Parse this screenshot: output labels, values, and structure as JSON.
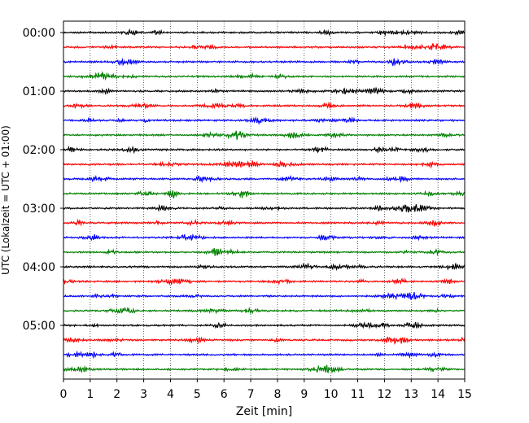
{
  "chart_data": {
    "type": "line",
    "title": "",
    "xlabel": "Zeit  [min]",
    "ylabel": "UTC (Lokalzeit = UTC + 01:00)",
    "xlim": [
      0,
      15
    ],
    "x_ticks": [
      "0",
      "1",
      "2",
      "3",
      "4",
      "5",
      "6",
      "7",
      "8",
      "9",
      "10",
      "11",
      "12",
      "13",
      "14",
      "15"
    ],
    "y_tick_labels": [
      "00:00",
      "01:00",
      "02:00",
      "03:00",
      "04:00",
      "05:00"
    ],
    "trace_interval_min": 15,
    "trace_count": 24,
    "trace_colors": [
      "#000000",
      "#ff0000",
      "#0000ff",
      "#008000"
    ],
    "grid": {
      "x": "dotted vertical at each minute",
      "y": false
    },
    "legend": "none",
    "traces": [
      {
        "start": "00:00",
        "color": "#000000"
      },
      {
        "start": "00:15",
        "color": "#ff0000"
      },
      {
        "start": "00:30",
        "color": "#0000ff"
      },
      {
        "start": "00:45",
        "color": "#008000"
      },
      {
        "start": "01:00",
        "color": "#000000"
      },
      {
        "start": "01:15",
        "color": "#ff0000"
      },
      {
        "start": "01:30",
        "color": "#0000ff"
      },
      {
        "start": "01:45",
        "color": "#008000"
      },
      {
        "start": "02:00",
        "color": "#000000"
      },
      {
        "start": "02:15",
        "color": "#ff0000"
      },
      {
        "start": "02:30",
        "color": "#0000ff"
      },
      {
        "start": "02:45",
        "color": "#008000"
      },
      {
        "start": "03:00",
        "color": "#000000"
      },
      {
        "start": "03:15",
        "color": "#ff0000"
      },
      {
        "start": "03:30",
        "color": "#0000ff"
      },
      {
        "start": "03:45",
        "color": "#008000"
      },
      {
        "start": "04:00",
        "color": "#000000"
      },
      {
        "start": "04:15",
        "color": "#ff0000"
      },
      {
        "start": "04:30",
        "color": "#0000ff"
      },
      {
        "start": "04:45",
        "color": "#008000"
      },
      {
        "start": "05:00",
        "color": "#000000"
      },
      {
        "start": "05:15",
        "color": "#ff0000"
      },
      {
        "start": "05:30",
        "color": "#0000ff"
      },
      {
        "start": "05:45",
        "color": "#008000"
      }
    ]
  }
}
